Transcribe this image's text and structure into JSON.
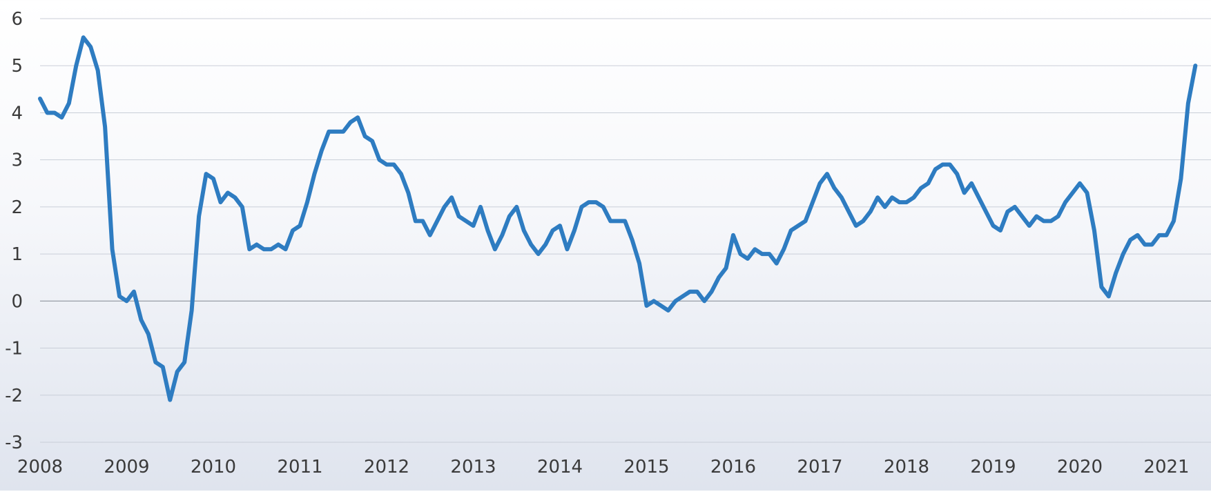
{
  "chart_data": {
    "type": "line",
    "title": "",
    "xlabel": "",
    "ylabel": "",
    "ylim": [
      -3,
      6
    ],
    "xlim": [
      2008,
      2021.35
    ],
    "grid": true,
    "legend": "none",
    "colors": {
      "line": "#2e7cc1",
      "grid": "#c9ced8",
      "zero_line": "#8d939c",
      "text": "#3a3a3a"
    },
    "y_ticks": [
      "-3",
      "-2",
      "-1",
      "0",
      "1",
      "2",
      "3",
      "4",
      "5",
      "6"
    ],
    "x_ticks": [
      "2008",
      "2009",
      "2010",
      "2011",
      "2012",
      "2013",
      "2014",
      "2015",
      "2016",
      "2017",
      "2018",
      "2019",
      "2020",
      "2021"
    ],
    "series": [
      {
        "start": "2008-01",
        "frequency": "monthly",
        "values": [
          4.3,
          4.0,
          4.0,
          3.9,
          4.2,
          5.0,
          5.6,
          5.4,
          4.9,
          3.7,
          1.1,
          0.1,
          0.0,
          0.2,
          -0.4,
          -0.7,
          -1.3,
          -1.4,
          -2.1,
          -1.5,
          -1.3,
          -0.2,
          1.8,
          2.7,
          2.6,
          2.1,
          2.3,
          2.2,
          2.0,
          1.1,
          1.2,
          1.1,
          1.1,
          1.2,
          1.1,
          1.5,
          1.6,
          2.1,
          2.7,
          3.2,
          3.6,
          3.6,
          3.6,
          3.8,
          3.9,
          3.5,
          3.4,
          3.0,
          2.9,
          2.9,
          2.7,
          2.3,
          1.7,
          1.7,
          1.4,
          1.7,
          2.0,
          2.2,
          1.8,
          1.7,
          1.6,
          2.0,
          1.5,
          1.1,
          1.4,
          1.8,
          2.0,
          1.5,
          1.2,
          1.0,
          1.2,
          1.5,
          1.6,
          1.1,
          1.5,
          2.0,
          2.1,
          2.1,
          2.0,
          1.7,
          1.7,
          1.7,
          1.3,
          0.8,
          -0.1,
          0.0,
          -0.1,
          -0.2,
          0.0,
          0.1,
          0.2,
          0.2,
          0.0,
          0.2,
          0.5,
          0.7,
          1.4,
          1.0,
          0.9,
          1.1,
          1.0,
          1.0,
          0.8,
          1.1,
          1.5,
          1.6,
          1.7,
          2.1,
          2.5,
          2.7,
          2.4,
          2.2,
          1.9,
          1.6,
          1.7,
          1.9,
          2.2,
          2.0,
          2.2,
          2.1,
          2.1,
          2.2,
          2.4,
          2.5,
          2.8,
          2.9,
          2.9,
          2.7,
          2.3,
          2.5,
          2.2,
          1.9,
          1.6,
          1.5,
          1.9,
          2.0,
          1.8,
          1.6,
          1.8,
          1.7,
          1.7,
          1.8,
          2.1,
          2.3,
          2.5,
          2.3,
          1.5,
          0.3,
          0.1,
          0.6,
          1.0,
          1.3,
          1.4,
          1.2,
          1.2,
          1.4,
          1.4,
          1.7,
          2.6,
          4.2,
          5.0
        ]
      }
    ]
  }
}
